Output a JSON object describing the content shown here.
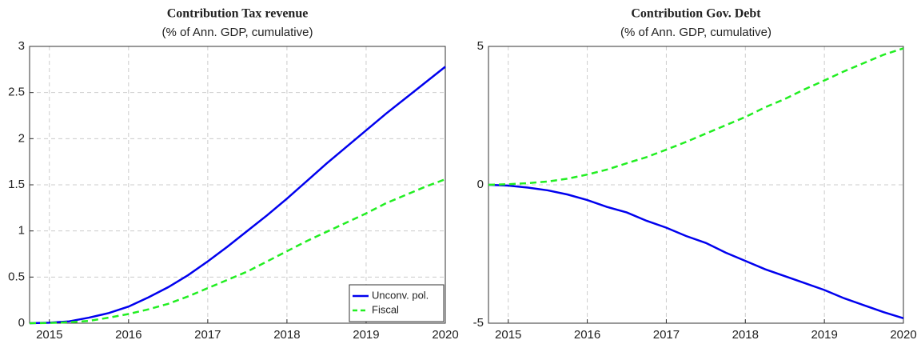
{
  "chart_data": [
    {
      "type": "line",
      "title": "Contribution Tax revenue",
      "subtitle": "(% of Ann. GDP, cumulative)",
      "x": [
        2014.75,
        2015,
        2015.25,
        2015.5,
        2015.75,
        2016,
        2016.25,
        2016.5,
        2016.75,
        2017,
        2017.25,
        2017.5,
        2017.75,
        2018,
        2018.25,
        2018.5,
        2018.75,
        2019,
        2019.25,
        2019.5,
        2019.75,
        2020
      ],
      "series": [
        {
          "name": "Unconv. pol.",
          "color": "#0000ee",
          "dash": "solid",
          "values": [
            0,
            0.005,
            0.02,
            0.06,
            0.11,
            0.18,
            0.28,
            0.39,
            0.52,
            0.67,
            0.83,
            1.0,
            1.17,
            1.35,
            1.54,
            1.73,
            1.91,
            2.09,
            2.27,
            2.44,
            2.61,
            2.78
          ]
        },
        {
          "name": "Fiscal",
          "color": "#22ee22",
          "dash": "dashed",
          "values": [
            0,
            0.003,
            0.01,
            0.025,
            0.06,
            0.1,
            0.15,
            0.21,
            0.29,
            0.38,
            0.47,
            0.56,
            0.67,
            0.78,
            0.89,
            0.99,
            1.09,
            1.19,
            1.3,
            1.39,
            1.48,
            1.56
          ]
        }
      ],
      "xlim": [
        2014.75,
        2020
      ],
      "xticks": [
        2015,
        2016,
        2017,
        2018,
        2019,
        2020
      ],
      "ylim": [
        0,
        3
      ],
      "yticks": [
        0,
        0.5,
        1,
        1.5,
        2,
        2.5,
        3
      ],
      "grid": true,
      "legend": "lower right"
    },
    {
      "type": "line",
      "title": "Contribution Gov. Debt",
      "subtitle": "(% of Ann. GDP, cumulative)",
      "x": [
        2014.75,
        2015,
        2015.25,
        2015.5,
        2015.75,
        2016,
        2016.25,
        2016.5,
        2016.75,
        2017,
        2017.25,
        2017.5,
        2017.75,
        2018,
        2018.25,
        2018.5,
        2018.75,
        2019,
        2019.25,
        2019.5,
        2019.75,
        2020
      ],
      "series": [
        {
          "color": "#0000ee",
          "dash": "solid",
          "values": [
            0,
            -0.03,
            -0.1,
            -0.2,
            -0.35,
            -0.55,
            -0.8,
            -1.0,
            -1.3,
            -1.55,
            -1.85,
            -2.1,
            -2.45,
            -2.75,
            -3.05,
            -3.3,
            -3.55,
            -3.8,
            -4.1,
            -4.35,
            -4.6,
            -4.82
          ]
        },
        {
          "color": "#22ee22",
          "dash": "dashed",
          "values": [
            0,
            0.02,
            0.06,
            0.12,
            0.22,
            0.37,
            0.55,
            0.78,
            1.0,
            1.27,
            1.55,
            1.85,
            2.15,
            2.45,
            2.8,
            3.1,
            3.45,
            3.77,
            4.1,
            4.4,
            4.7,
            4.93
          ]
        }
      ],
      "xlim": [
        2014.75,
        2020
      ],
      "xticks": [
        2015,
        2016,
        2017,
        2018,
        2019,
        2020
      ],
      "ylim": [
        -5,
        5
      ],
      "yticks": [
        -5,
        0,
        5
      ],
      "grid": true
    }
  ]
}
